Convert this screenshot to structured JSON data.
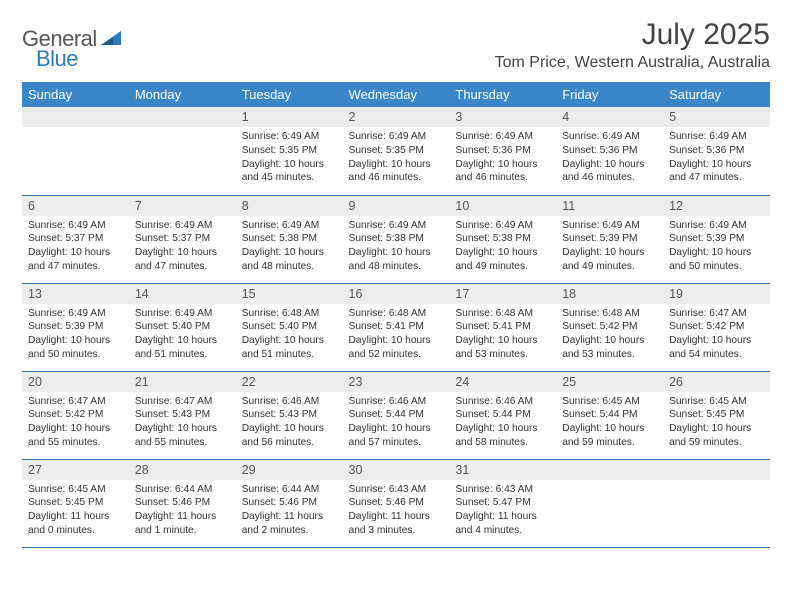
{
  "brand": {
    "name_part1": "General",
    "name_part2": "Blue",
    "color_gray": "#585858",
    "color_blue": "#2f7bbf"
  },
  "header": {
    "month_title": "July 2025",
    "location": "Tom Price, Western Australia, Australia"
  },
  "colors": {
    "header_bg": "#3a86c8",
    "header_text": "#ffffff",
    "row_border": "#3478b8",
    "daynum_bg": "#ececec",
    "daynum_text": "#555555",
    "body_text": "#333333",
    "page_bg": "#ffffff"
  },
  "weekdays": [
    "Sunday",
    "Monday",
    "Tuesday",
    "Wednesday",
    "Thursday",
    "Friday",
    "Saturday"
  ],
  "weeks": [
    [
      {
        "blank": true
      },
      {
        "blank": true
      },
      {
        "day": "1",
        "sunrise": "Sunrise: 6:49 AM",
        "sunset": "Sunset: 5:35 PM",
        "daylight": "Daylight: 10 hours and 45 minutes."
      },
      {
        "day": "2",
        "sunrise": "Sunrise: 6:49 AM",
        "sunset": "Sunset: 5:35 PM",
        "daylight": "Daylight: 10 hours and 46 minutes."
      },
      {
        "day": "3",
        "sunrise": "Sunrise: 6:49 AM",
        "sunset": "Sunset: 5:36 PM",
        "daylight": "Daylight: 10 hours and 46 minutes."
      },
      {
        "day": "4",
        "sunrise": "Sunrise: 6:49 AM",
        "sunset": "Sunset: 5:36 PM",
        "daylight": "Daylight: 10 hours and 46 minutes."
      },
      {
        "day": "5",
        "sunrise": "Sunrise: 6:49 AM",
        "sunset": "Sunset: 5:36 PM",
        "daylight": "Daylight: 10 hours and 47 minutes."
      }
    ],
    [
      {
        "day": "6",
        "sunrise": "Sunrise: 6:49 AM",
        "sunset": "Sunset: 5:37 PM",
        "daylight": "Daylight: 10 hours and 47 minutes."
      },
      {
        "day": "7",
        "sunrise": "Sunrise: 6:49 AM",
        "sunset": "Sunset: 5:37 PM",
        "daylight": "Daylight: 10 hours and 47 minutes."
      },
      {
        "day": "8",
        "sunrise": "Sunrise: 6:49 AM",
        "sunset": "Sunset: 5:38 PM",
        "daylight": "Daylight: 10 hours and 48 minutes."
      },
      {
        "day": "9",
        "sunrise": "Sunrise: 6:49 AM",
        "sunset": "Sunset: 5:38 PM",
        "daylight": "Daylight: 10 hours and 48 minutes."
      },
      {
        "day": "10",
        "sunrise": "Sunrise: 6:49 AM",
        "sunset": "Sunset: 5:38 PM",
        "daylight": "Daylight: 10 hours and 49 minutes."
      },
      {
        "day": "11",
        "sunrise": "Sunrise: 6:49 AM",
        "sunset": "Sunset: 5:39 PM",
        "daylight": "Daylight: 10 hours and 49 minutes."
      },
      {
        "day": "12",
        "sunrise": "Sunrise: 6:49 AM",
        "sunset": "Sunset: 5:39 PM",
        "daylight": "Daylight: 10 hours and 50 minutes."
      }
    ],
    [
      {
        "day": "13",
        "sunrise": "Sunrise: 6:49 AM",
        "sunset": "Sunset: 5:39 PM",
        "daylight": "Daylight: 10 hours and 50 minutes."
      },
      {
        "day": "14",
        "sunrise": "Sunrise: 6:49 AM",
        "sunset": "Sunset: 5:40 PM",
        "daylight": "Daylight: 10 hours and 51 minutes."
      },
      {
        "day": "15",
        "sunrise": "Sunrise: 6:48 AM",
        "sunset": "Sunset: 5:40 PM",
        "daylight": "Daylight: 10 hours and 51 minutes."
      },
      {
        "day": "16",
        "sunrise": "Sunrise: 6:48 AM",
        "sunset": "Sunset: 5:41 PM",
        "daylight": "Daylight: 10 hours and 52 minutes."
      },
      {
        "day": "17",
        "sunrise": "Sunrise: 6:48 AM",
        "sunset": "Sunset: 5:41 PM",
        "daylight": "Daylight: 10 hours and 53 minutes."
      },
      {
        "day": "18",
        "sunrise": "Sunrise: 6:48 AM",
        "sunset": "Sunset: 5:42 PM",
        "daylight": "Daylight: 10 hours and 53 minutes."
      },
      {
        "day": "19",
        "sunrise": "Sunrise: 6:47 AM",
        "sunset": "Sunset: 5:42 PM",
        "daylight": "Daylight: 10 hours and 54 minutes."
      }
    ],
    [
      {
        "day": "20",
        "sunrise": "Sunrise: 6:47 AM",
        "sunset": "Sunset: 5:42 PM",
        "daylight": "Daylight: 10 hours and 55 minutes."
      },
      {
        "day": "21",
        "sunrise": "Sunrise: 6:47 AM",
        "sunset": "Sunset: 5:43 PM",
        "daylight": "Daylight: 10 hours and 55 minutes."
      },
      {
        "day": "22",
        "sunrise": "Sunrise: 6:46 AM",
        "sunset": "Sunset: 5:43 PM",
        "daylight": "Daylight: 10 hours and 56 minutes."
      },
      {
        "day": "23",
        "sunrise": "Sunrise: 6:46 AM",
        "sunset": "Sunset: 5:44 PM",
        "daylight": "Daylight: 10 hours and 57 minutes."
      },
      {
        "day": "24",
        "sunrise": "Sunrise: 6:46 AM",
        "sunset": "Sunset: 5:44 PM",
        "daylight": "Daylight: 10 hours and 58 minutes."
      },
      {
        "day": "25",
        "sunrise": "Sunrise: 6:45 AM",
        "sunset": "Sunset: 5:44 PM",
        "daylight": "Daylight: 10 hours and 59 minutes."
      },
      {
        "day": "26",
        "sunrise": "Sunrise: 6:45 AM",
        "sunset": "Sunset: 5:45 PM",
        "daylight": "Daylight: 10 hours and 59 minutes."
      }
    ],
    [
      {
        "day": "27",
        "sunrise": "Sunrise: 6:45 AM",
        "sunset": "Sunset: 5:45 PM",
        "daylight": "Daylight: 11 hours and 0 minutes."
      },
      {
        "day": "28",
        "sunrise": "Sunrise: 6:44 AM",
        "sunset": "Sunset: 5:46 PM",
        "daylight": "Daylight: 11 hours and 1 minute."
      },
      {
        "day": "29",
        "sunrise": "Sunrise: 6:44 AM",
        "sunset": "Sunset: 5:46 PM",
        "daylight": "Daylight: 11 hours and 2 minutes."
      },
      {
        "day": "30",
        "sunrise": "Sunrise: 6:43 AM",
        "sunset": "Sunset: 5:46 PM",
        "daylight": "Daylight: 11 hours and 3 minutes."
      },
      {
        "day": "31",
        "sunrise": "Sunrise: 6:43 AM",
        "sunset": "Sunset: 5:47 PM",
        "daylight": "Daylight: 11 hours and 4 minutes."
      },
      {
        "blank": true
      },
      {
        "blank": true
      }
    ]
  ]
}
